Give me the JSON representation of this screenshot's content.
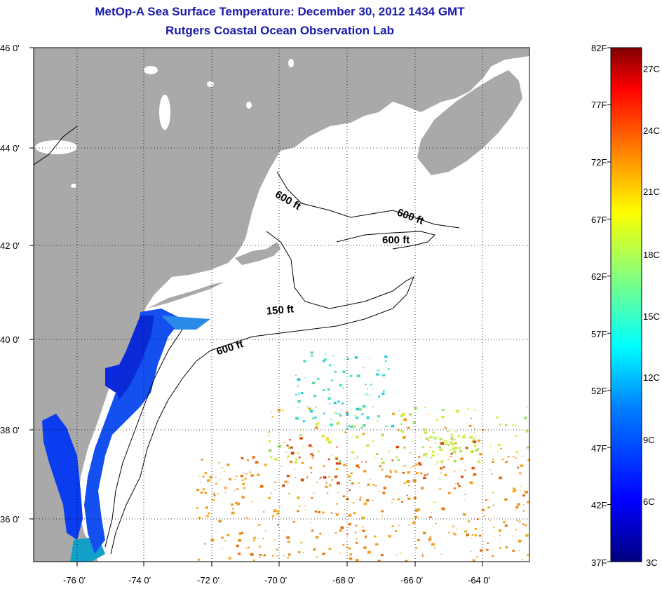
{
  "title": {
    "line1": "MetOp-A Sea Surface Temperature:  December 30, 2012 1434 GMT",
    "line2": "Rutgers Coastal Ocean Observation Lab"
  },
  "map": {
    "lat_range": [
      35,
      46
    ],
    "lon_range": [
      -77,
      -63
    ],
    "lat_ticks": [
      "36 0'",
      "38 0'",
      "40 0'",
      "42 0'",
      "44 0'",
      "46 0'"
    ],
    "lon_ticks": [
      "-76 0'",
      "-74 0'",
      "-72 0'",
      "-70 0'",
      "-68 0'",
      "-66 0'",
      "-64 0'"
    ],
    "depth_labels": [
      "600 ft",
      "600 ft",
      "600 ft",
      "150 ft",
      "600 ft"
    ],
    "colors": {
      "land": "#a9a9a9",
      "water": "#ffffff",
      "grid": "#000000"
    }
  },
  "colorbar": {
    "f_labels": [
      "82F",
      "77F",
      "72F",
      "67F",
      "62F",
      "57F",
      "52F",
      "47F",
      "42F",
      "37F"
    ],
    "c_labels": [
      "27C",
      "24C",
      "21C",
      "18C",
      "15C",
      "12C",
      "9C",
      "6C",
      "3C"
    ],
    "colors": [
      "#000080",
      "#0000ff",
      "#0080ff",
      "#00ffff",
      "#80ff80",
      "#ffff00",
      "#ff8000",
      "#ff0000",
      "#800000"
    ]
  }
}
